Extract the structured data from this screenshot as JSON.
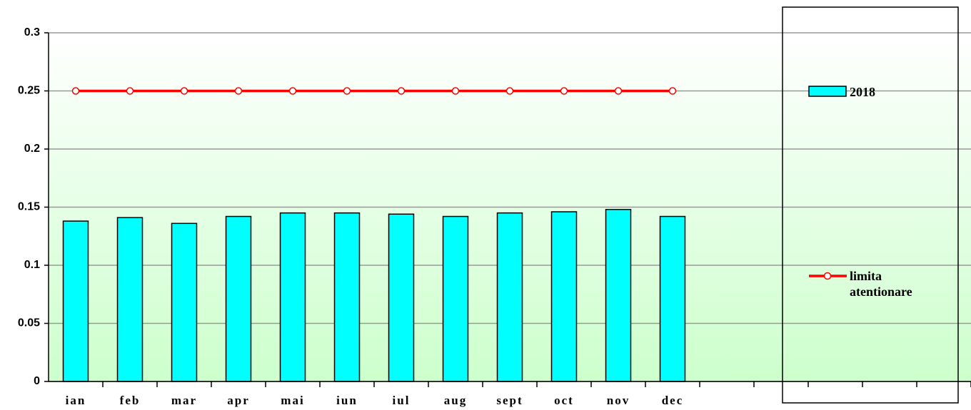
{
  "chart_data": {
    "type": "bar",
    "categories": [
      "ian",
      "feb",
      "mar",
      "apr",
      "mai",
      "iun",
      "iul",
      "aug",
      "sept",
      "oct",
      "nov",
      "dec",
      null,
      null,
      null,
      null,
      null
    ],
    "series": [
      {
        "name": "2018",
        "type": "bar",
        "color": "#00ffff",
        "values": [
          0.138,
          0.141,
          0.136,
          0.142,
          0.145,
          0.145,
          0.144,
          0.142,
          0.145,
          0.146,
          0.148,
          0.142,
          null,
          null,
          null,
          null,
          null
        ]
      },
      {
        "name": "limita atentionare",
        "type": "line",
        "color": "#ff0000",
        "values": [
          0.25,
          0.25,
          0.25,
          0.25,
          0.25,
          0.25,
          0.25,
          0.25,
          0.25,
          0.25,
          0.25,
          0.25,
          null,
          null,
          null,
          null,
          null
        ]
      }
    ],
    "ylim": [
      0,
      0.3
    ],
    "yticks": [
      0,
      0.05,
      0.1,
      0.15,
      0.2,
      0.25,
      0.3
    ],
    "grid": true,
    "legend": "right"
  }
}
